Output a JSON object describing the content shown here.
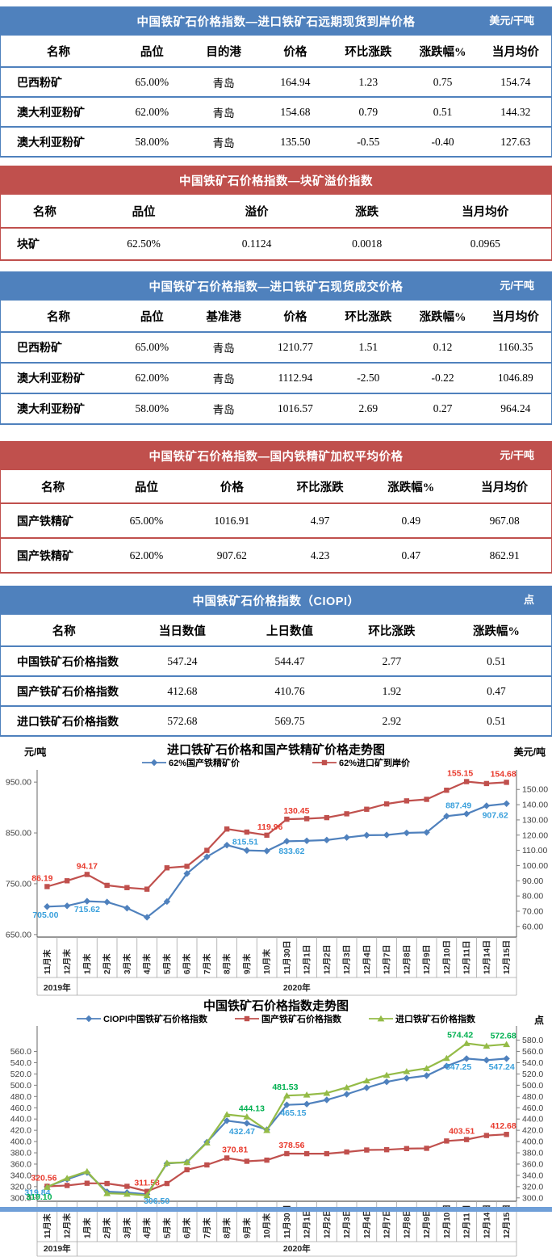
{
  "page": {
    "bottom_strip_color": "#6f9fd8"
  },
  "tables": [
    {
      "theme_color": "#4f81bd",
      "title": "中国铁矿石价格指数—进口铁矿石远期现货到岸价格",
      "unit": "美元/干吨",
      "columns": [
        "名称",
        "品位",
        "目的港",
        "价格",
        "环比涨跌",
        "涨跌幅%",
        "当月均价"
      ],
      "rows": [
        [
          "巴西粉矿",
          "65.00%",
          "青岛",
          "164.94",
          "1.23",
          "0.75",
          "154.74"
        ],
        [
          "澳大利亚粉矿",
          "62.00%",
          "青岛",
          "154.68",
          "0.79",
          "0.51",
          "144.32"
        ],
        [
          "澳大利亚粉矿",
          "58.00%",
          "青岛",
          "135.50",
          "-0.55",
          "-0.40",
          "127.63"
        ]
      ]
    },
    {
      "theme_color": "#c0504d",
      "title": "中国铁矿石价格指数—块矿溢价指数",
      "unit": "",
      "columns": [
        "名称",
        "品位",
        "溢价",
        "涨跌",
        "当月均价"
      ],
      "rows": [
        [
          "块矿",
          "62.50%",
          "0.1124",
          "0.0018",
          "0.0965"
        ]
      ]
    },
    {
      "theme_color": "#4f81bd",
      "title": "中国铁矿石价格指数—进口铁矿石现货成交价格",
      "unit": "元/干吨",
      "columns": [
        "名称",
        "品位",
        "基准港",
        "价格",
        "环比涨跌",
        "涨跌幅%",
        "当月均价"
      ],
      "rows": [
        [
          "巴西粉矿",
          "65.00%",
          "青岛",
          "1210.77",
          "1.51",
          "0.12",
          "1160.35"
        ],
        [
          "澳大利亚粉矿",
          "62.00%",
          "青岛",
          "1112.94",
          "-2.50",
          "-0.22",
          "1046.89"
        ],
        [
          "澳大利亚粉矿",
          "58.00%",
          "青岛",
          "1016.57",
          "2.69",
          "0.27",
          "964.24"
        ]
      ]
    },
    {
      "theme_color": "#c0504d",
      "title": "中国铁矿石价格指数—国内铁精矿加权平均价格",
      "unit": "元/干吨",
      "columns": [
        "名称",
        "品位",
        "价格",
        "环比涨跌",
        "涨跌幅%",
        "当月均价"
      ],
      "rows": [
        [
          "国产铁精矿",
          "65.00%",
          "1016.91",
          "4.97",
          "0.49",
          "967.08"
        ],
        [
          "国产铁精矿",
          "62.00%",
          "907.62",
          "4.23",
          "0.47",
          "862.91"
        ]
      ]
    },
    {
      "theme_color": "#4f81bd",
      "title": "中国铁矿石价格指数（CIOPI）",
      "unit": "点",
      "columns": [
        "名称",
        "当日数值",
        "上日数值",
        "环比涨跌",
        "涨跌幅%"
      ],
      "rows": [
        [
          "中国铁矿石价格指数",
          "547.24",
          "544.47",
          "2.77",
          "0.51"
        ],
        [
          "国产铁矿石价格指数",
          "412.68",
          "410.76",
          "1.92",
          "0.47"
        ],
        [
          "进口铁矿石价格指数",
          "572.68",
          "569.75",
          "2.92",
          "0.51"
        ]
      ]
    }
  ],
  "chart_data": [
    {
      "type": "line",
      "title": "进口铁矿石价格和国产铁精矿价格走势图",
      "left_axis": {
        "unit": "元/吨",
        "range": [
          645,
          955
        ],
        "ticks": [
          {
            "v": 950,
            "t": "950.00"
          },
          {
            "v": 850,
            "t": "850.00"
          },
          {
            "v": 750,
            "t": "750.00"
          },
          {
            "v": 650,
            "t": "650.00"
          }
        ]
      },
      "right_axis": {
        "unit": "美元/吨",
        "range": [
          53,
          156.5
        ],
        "ticks": [
          {
            "v": 150,
            "t": "150.00"
          },
          {
            "v": 140,
            "t": "140.00"
          },
          {
            "v": 130,
            "t": "130.00"
          },
          {
            "v": 120,
            "t": "120.00"
          },
          {
            "v": 110,
            "t": "110.00"
          },
          {
            "v": 100,
            "t": "100.00"
          },
          {
            "v": 90,
            "t": "90.00"
          },
          {
            "v": 80,
            "t": "80.00"
          },
          {
            "v": 70,
            "t": "70.00"
          },
          {
            "v": 60,
            "t": "60.00"
          }
        ]
      },
      "categories": [
        "11月末",
        "12月末",
        "1月末",
        "2月末",
        "3月末",
        "4月末",
        "5月末",
        "6月末",
        "7月末",
        "8月末",
        "9月末",
        "10月末",
        "11月30日",
        "12月1日",
        "12月2日",
        "12月3日",
        "12月4日",
        "12月7日",
        "12月8日",
        "12月9日",
        "12月10日",
        "12月11日",
        "12月14日",
        "12月15日"
      ],
      "year_groups": [
        {
          "label": "2019年",
          "span": 2
        },
        {
          "label": "2020年",
          "span": 22
        }
      ],
      "series": [
        {
          "name": "62%国产铁精矿价",
          "axis": "left",
          "marker": "diamond",
          "color": "#4f81bd",
          "label_color": "#3aa0dc",
          "values": [
            705,
            706.5,
            715.62,
            714,
            702,
            684,
            715,
            770,
            803,
            826,
            815.51,
            814.5,
            833.62,
            834.5,
            836,
            841,
            845.5,
            846,
            850,
            851,
            883,
            887.49,
            903.39,
            907.62
          ],
          "point_labels": [
            {
              "i": 0,
              "t": "705.00",
              "p": "b",
              "dx": -2
            },
            {
              "i": 2,
              "t": "715.62",
              "p": "b"
            },
            {
              "i": 10,
              "t": "815.51",
              "p": "a",
              "dx": -2
            },
            {
              "i": 12,
              "t": "833.62",
              "p": "b",
              "dx": 6,
              "dy": 2
            },
            {
              "i": 21,
              "t": "887.49",
              "p": "a",
              "dx": -10
            },
            {
              "i": 23,
              "t": "907.62",
              "p": "b",
              "dx": -14,
              "dy": 4
            }
          ]
        },
        {
          "name": "62%进口矿到岸价",
          "axis": "right",
          "marker": "square",
          "color": "#c0504d",
          "label_color": "#e83a2d",
          "values": [
            86.19,
            90,
            94.17,
            87,
            85.5,
            84.5,
            98.5,
            99.5,
            110,
            124,
            122,
            119.96,
            130.45,
            130.8,
            131.5,
            134,
            137,
            140.5,
            142.5,
            143.5,
            149.5,
            155.15,
            153.89,
            154.68
          ],
          "point_labels": [
            {
              "i": 0,
              "t": "86.19",
              "p": "a",
              "dx": -6
            },
            {
              "i": 2,
              "t": "94.17",
              "p": "a"
            },
            {
              "i": 11,
              "t": "119.96",
              "p": "a",
              "dx": 4
            },
            {
              "i": 12,
              "t": "130.45",
              "p": "a",
              "dx": 12
            },
            {
              "i": 21,
              "t": "155.15",
              "p": "a",
              "dx": -8
            },
            {
              "i": 23,
              "t": "154.68",
              "p": "a",
              "dx": -4
            }
          ]
        }
      ]
    },
    {
      "type": "line",
      "title": "中国铁矿石价格指数走势图",
      "left_axis": {
        "unit": "",
        "range": [
          294,
          588
        ],
        "ticks": [
          {
            "v": 560,
            "t": "560.0"
          },
          {
            "v": 540,
            "t": "540.0"
          },
          {
            "v": 520,
            "t": "520.0"
          },
          {
            "v": 500,
            "t": "500.0"
          },
          {
            "v": 480,
            "t": "480.0"
          },
          {
            "v": 460,
            "t": "460.0"
          },
          {
            "v": 440,
            "t": "440.0"
          },
          {
            "v": 420,
            "t": "420.0"
          },
          {
            "v": 400,
            "t": "400.0"
          },
          {
            "v": 380,
            "t": "380.0"
          },
          {
            "v": 360,
            "t": "360.0"
          },
          {
            "v": 340,
            "t": "340.0"
          },
          {
            "v": 320,
            "t": "320.0"
          },
          {
            "v": 300,
            "t": "300.0"
          }
        ]
      },
      "right_axis": {
        "unit": "点",
        "range": [
          294,
          588
        ],
        "ticks": [
          {
            "v": 580,
            "t": "580.0"
          },
          {
            "v": 560,
            "t": "560.0"
          },
          {
            "v": 540,
            "t": "540.0"
          },
          {
            "v": 520,
            "t": "520.0"
          },
          {
            "v": 500,
            "t": "500.0"
          },
          {
            "v": 480,
            "t": "480.0"
          },
          {
            "v": 460,
            "t": "460.0"
          },
          {
            "v": 440,
            "t": "440.0"
          },
          {
            "v": 420,
            "t": "420.0"
          },
          {
            "v": 400,
            "t": "400.0"
          },
          {
            "v": 380,
            "t": "380.0"
          },
          {
            "v": 360,
            "t": "360.0"
          },
          {
            "v": 340,
            "t": "340.0"
          },
          {
            "v": 320,
            "t": "320.0"
          },
          {
            "v": 300,
            "t": "300.0"
          }
        ]
      },
      "categories": [
        "11月末",
        "12月末",
        "1月末",
        "2月末",
        "3月末",
        "4月末",
        "5月末",
        "6月末",
        "7月末",
        "8月末",
        "9月末",
        "10月末",
        "11月30日",
        "12月1日",
        "12月2日",
        "12月3日",
        "12月4日",
        "12月7日",
        "12月8日",
        "12月9日",
        "12月10日",
        "12月11日",
        "12月14日",
        "12月15日"
      ],
      "year_groups": [
        {
          "label": "2019年",
          "span": 2
        },
        {
          "label": "2020年",
          "span": 22
        }
      ],
      "series": [
        {
          "name": "CIOPI中国铁矿石价格指数",
          "axis": "right",
          "marker": "diamond",
          "color": "#4f81bd",
          "label_color": "#3aa0dc",
          "values": [
            319.84,
            333,
            345,
            311,
            309.5,
            306.5,
            361,
            363.5,
            399,
            437,
            432.47,
            421,
            465.15,
            466.5,
            474,
            484,
            495.5,
            506,
            512.5,
            517,
            534,
            547.25,
            544.47,
            547.24
          ],
          "point_labels": [
            {
              "i": 0,
              "t": "319.84",
              "p": "b",
              "dx": -12,
              "dy": -3
            },
            {
              "i": 5,
              "t": "306.50",
              "p": "b",
              "dx": 12,
              "dy": -2
            },
            {
              "i": 10,
              "t": "432.47",
              "p": "b",
              "dx": -6
            },
            {
              "i": 12,
              "t": "465.15",
              "p": "b",
              "dx": 8
            },
            {
              "i": 21,
              "t": "547.25",
              "p": "b",
              "dx": -10
            },
            {
              "i": 23,
              "t": "547.24",
              "p": "b",
              "dx": -6
            }
          ]
        },
        {
          "name": "国产铁矿石价格指数",
          "axis": "right",
          "marker": "square",
          "color": "#c0504d",
          "label_color": "#e83a2d",
          "values": [
            320.56,
            322,
            326,
            325.5,
            320.5,
            311.58,
            325.5,
            350,
            358.5,
            370.81,
            365,
            367,
            378.56,
            378.5,
            378.5,
            381.5,
            385,
            385.5,
            387.5,
            388,
            401,
            403.51,
            410.76,
            412.68
          ],
          "point_labels": [
            {
              "i": 0,
              "t": "320.56",
              "p": "a",
              "dx": -4
            },
            {
              "i": 5,
              "t": "311.58",
              "p": "a"
            },
            {
              "i": 9,
              "t": "370.81",
              "p": "a",
              "dx": 10
            },
            {
              "i": 12,
              "t": "378.56",
              "p": "a",
              "dx": 6
            },
            {
              "i": 21,
              "t": "403.51",
              "p": "a",
              "dx": -6
            },
            {
              "i": 23,
              "t": "412.68",
              "p": "a",
              "dx": -4
            }
          ]
        },
        {
          "name": "进口铁矿石价格指数",
          "axis": "right",
          "marker": "triangle",
          "color": "#94bb47",
          "label_color": "#00b050",
          "values": [
            319.1,
            335,
            347,
            308,
            307,
            304.5,
            362,
            363,
            398,
            448,
            444.13,
            420,
            481.53,
            483,
            486,
            496,
            508,
            518,
            524.5,
            530,
            548,
            574.42,
            569.75,
            572.68
          ],
          "point_labels": [
            {
              "i": 0,
              "t": "319.10",
              "p": "b",
              "dx": -10,
              "dy": 2
            },
            {
              "i": 10,
              "t": "444.13",
              "p": "a",
              "dx": 6
            },
            {
              "i": 12,
              "t": "481.53",
              "p": "a",
              "dx": -2
            },
            {
              "i": 21,
              "t": "574.42",
              "p": "a",
              "dx": -8
            },
            {
              "i": 23,
              "t": "572.68",
              "p": "a",
              "dx": -4
            }
          ]
        }
      ]
    }
  ]
}
